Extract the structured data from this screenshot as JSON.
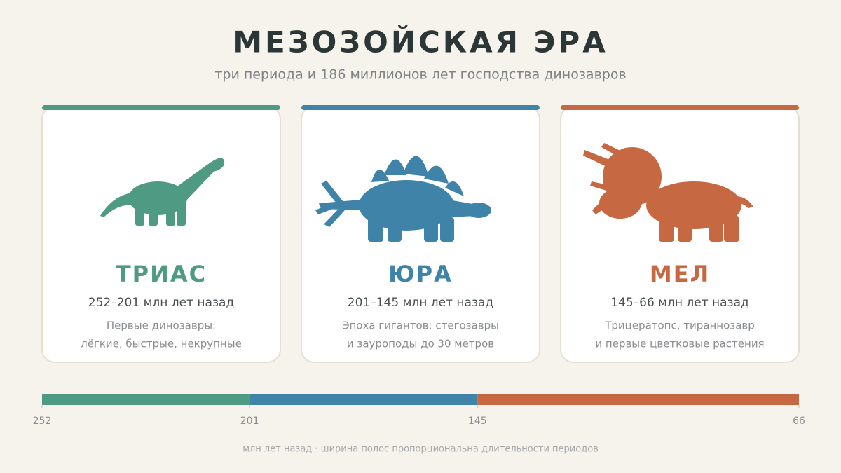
{
  "header": {
    "title": "МЕЗОЗОЙСКАЯ ЭРА",
    "subtitle": "три периода и 186 миллионов лет господства динозавров"
  },
  "cards": [
    {
      "name": "ТРИАС",
      "range": "252–201 млн лет назад",
      "description": [
        "Первые динозавры:",
        "лёгкие, быстрые, некрупные"
      ],
      "color": "#4f9a82"
    },
    {
      "name": "ЮРА",
      "range": "201–145 млн лет назад",
      "description": [
        "Эпоха гигантов: стегозавры",
        "и зауроподы до 30 метров"
      ],
      "color": "#3f84a8"
    },
    {
      "name": "МЕЛ",
      "range": "145–66 млн лет назад",
      "description": [
        "Трицератопс, тираннозавр",
        "и первые цветковые растения"
      ],
      "color": "#c66842"
    }
  ],
  "timeline": {
    "xlim": [
      252,
      66
    ],
    "ticks": [
      252,
      201,
      145,
      66
    ],
    "note": "млн лет назад · ширина полос пропорциональна длительности периодов"
  }
}
